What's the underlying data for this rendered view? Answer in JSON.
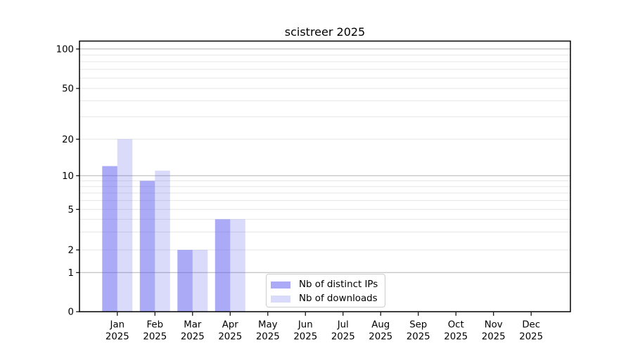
{
  "chart_data": {
    "type": "bar",
    "title": "scistreer 2025",
    "categories": [
      "Jan 2025",
      "Feb 2025",
      "Mar 2025",
      "Apr 2025",
      "May 2025",
      "Jun 2025",
      "Jul 2025",
      "Aug 2025",
      "Sep 2025",
      "Oct 2025",
      "Nov 2025",
      "Dec 2025"
    ],
    "series": [
      {
        "name": "Nb of distinct IPs",
        "color": "#5555EE80",
        "values": [
          12,
          9,
          2,
          4,
          0,
          0,
          0,
          0,
          0,
          0,
          0,
          0
        ]
      },
      {
        "name": "Nb of downloads",
        "color": "#5555EE38",
        "values": [
          20,
          11,
          2,
          4,
          0,
          0,
          0,
          0,
          0,
          0,
          0,
          0
        ]
      }
    ],
    "yscale": "symlog",
    "y_ticks": [
      0,
      1,
      2,
      5,
      10,
      20,
      50,
      100
    ],
    "ylim": [
      0,
      115
    ],
    "grid": "horizontal",
    "legend_position": "lower-center-inside",
    "colors": {
      "grid_major": "#B3B3B3",
      "grid_minor": "#E6E6E6",
      "axis": "#000000",
      "legend_border": "#CCCCCC",
      "text": "#000000"
    }
  }
}
